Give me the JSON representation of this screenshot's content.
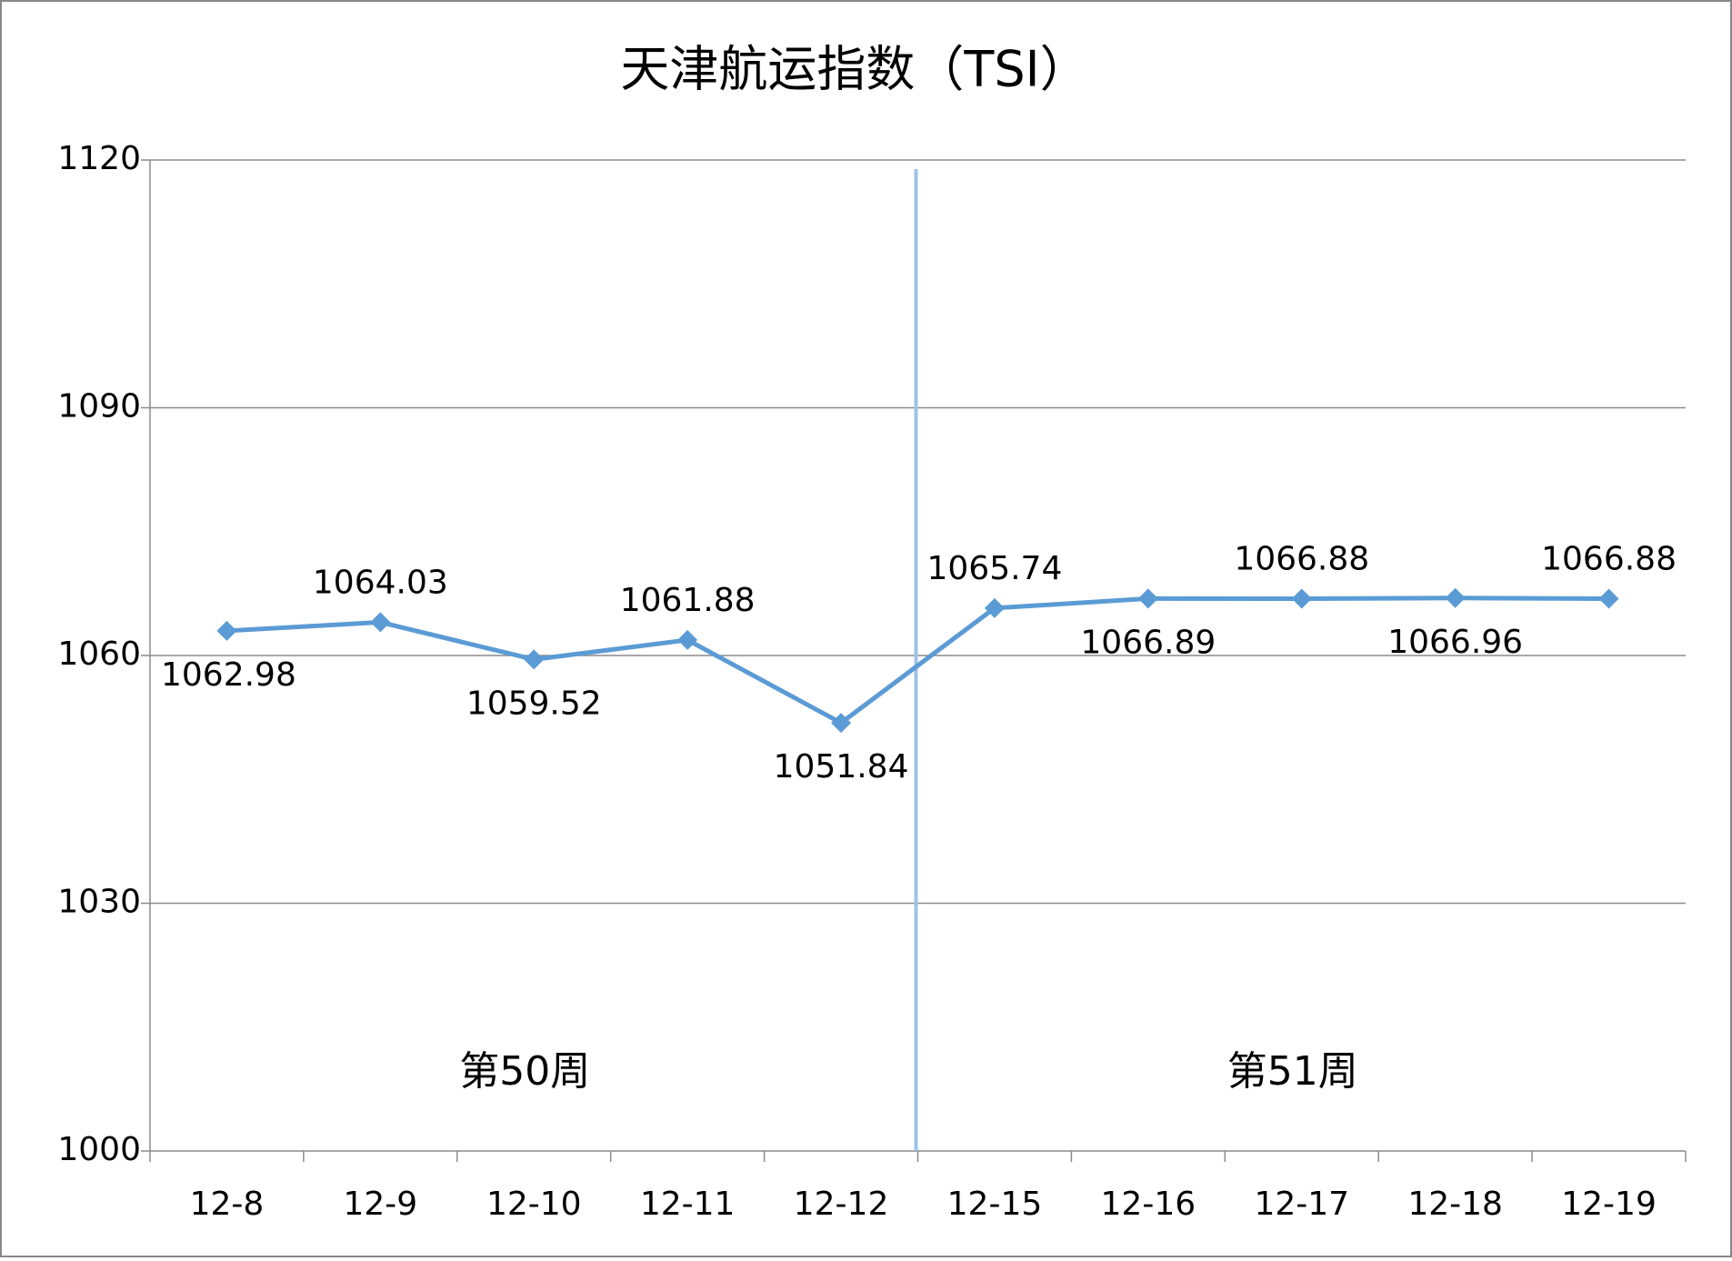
{
  "chart_data": {
    "type": "line",
    "title": "天津航运指数（TSI）",
    "categories": [
      "12-8",
      "12-9",
      "12-10",
      "12-11",
      "12-12",
      "12-15",
      "12-16",
      "12-17",
      "12-18",
      "12-19"
    ],
    "series": [
      {
        "name": "TSI",
        "color": "#5b9bd5",
        "values": [
          1062.98,
          1064.03,
          1059.52,
          1061.88,
          1051.84,
          1065.74,
          1066.89,
          1066.88,
          1066.96,
          1066.88
        ]
      }
    ],
    "ylim": [
      1000,
      1120
    ],
    "yticks": [
      1000,
      1030,
      1060,
      1090,
      1120
    ],
    "grid": true,
    "annotations": [
      "第50周",
      "第51周"
    ]
  }
}
